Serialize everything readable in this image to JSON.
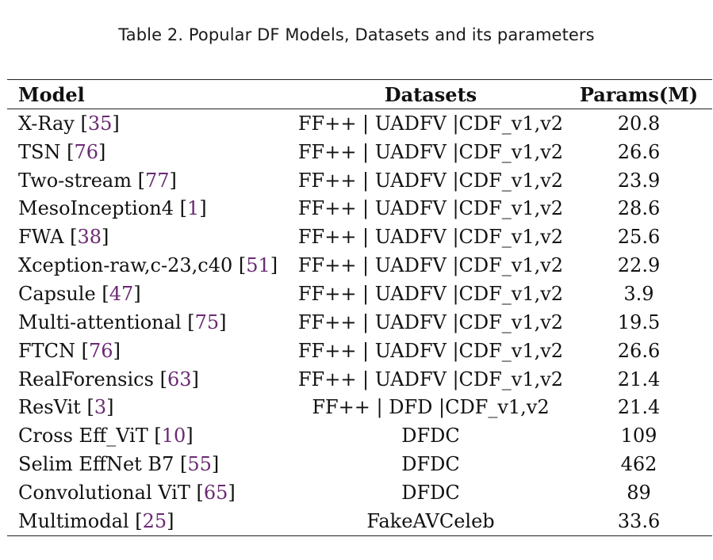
{
  "caption": "Table 2.  Popular DF Models, Datasets and its parameters",
  "table": {
    "headers": {
      "model": "Model",
      "datasets": "Datasets",
      "params": "Params(M)"
    },
    "rows": [
      {
        "model": "X-Ray",
        "ref": "35",
        "datasets": "FF++ | UADFV |CDF_v1,v2",
        "params": "20.8"
      },
      {
        "model": "TSN",
        "ref": "76",
        "datasets": "FF++ | UADFV |CDF_v1,v2",
        "params": "26.6"
      },
      {
        "model": "Two-stream",
        "ref": "77",
        "datasets": "FF++ | UADFV |CDF_v1,v2",
        "params": "23.9"
      },
      {
        "model": "MesoInception4",
        "ref": "1",
        "datasets": "FF++ | UADFV |CDF_v1,v2",
        "params": "28.6"
      },
      {
        "model": "FWA",
        "ref": "38",
        "datasets": "FF++ | UADFV |CDF_v1,v2",
        "params": "25.6"
      },
      {
        "model": "Xception-raw,c-23,c40",
        "ref": "51",
        "datasets": "FF++ | UADFV |CDF_v1,v2",
        "params": "22.9"
      },
      {
        "model": "Capsule",
        "ref": "47",
        "datasets": "FF++ | UADFV |CDF_v1,v2",
        "params": "3.9"
      },
      {
        "model": "Multi-attentional",
        "ref": "75",
        "datasets": "FF++ | UADFV |CDF_v1,v2",
        "params": "19.5"
      },
      {
        "model": "FTCN",
        "ref": "76",
        "datasets": "FF++ | UADFV |CDF_v1,v2",
        "params": "26.6"
      },
      {
        "model": "RealForensics",
        "ref": "63",
        "datasets": "FF++ | UADFV |CDF_v1,v2",
        "params": "21.4"
      },
      {
        "model": "ResVit",
        "ref": "3",
        "datasets": "FF++ | DFD |CDF_v1,v2",
        "params": "21.4"
      },
      {
        "model": "Cross Eff_ViT",
        "ref": "10",
        "datasets": "DFDC",
        "params": "109"
      },
      {
        "model": "Selim EffNet B7",
        "ref": "55",
        "datasets": "DFDC",
        "params": "462"
      },
      {
        "model": "Convolutional ViT",
        "ref": "65",
        "datasets": "DFDC",
        "params": "89"
      },
      {
        "model": "Multimodal",
        "ref": "25",
        "datasets": "FakeAVCeleb",
        "params": "33.6"
      }
    ]
  },
  "colors": {
    "citation_link": "#6b2a73",
    "text": "#111111",
    "rule": "#222222"
  }
}
